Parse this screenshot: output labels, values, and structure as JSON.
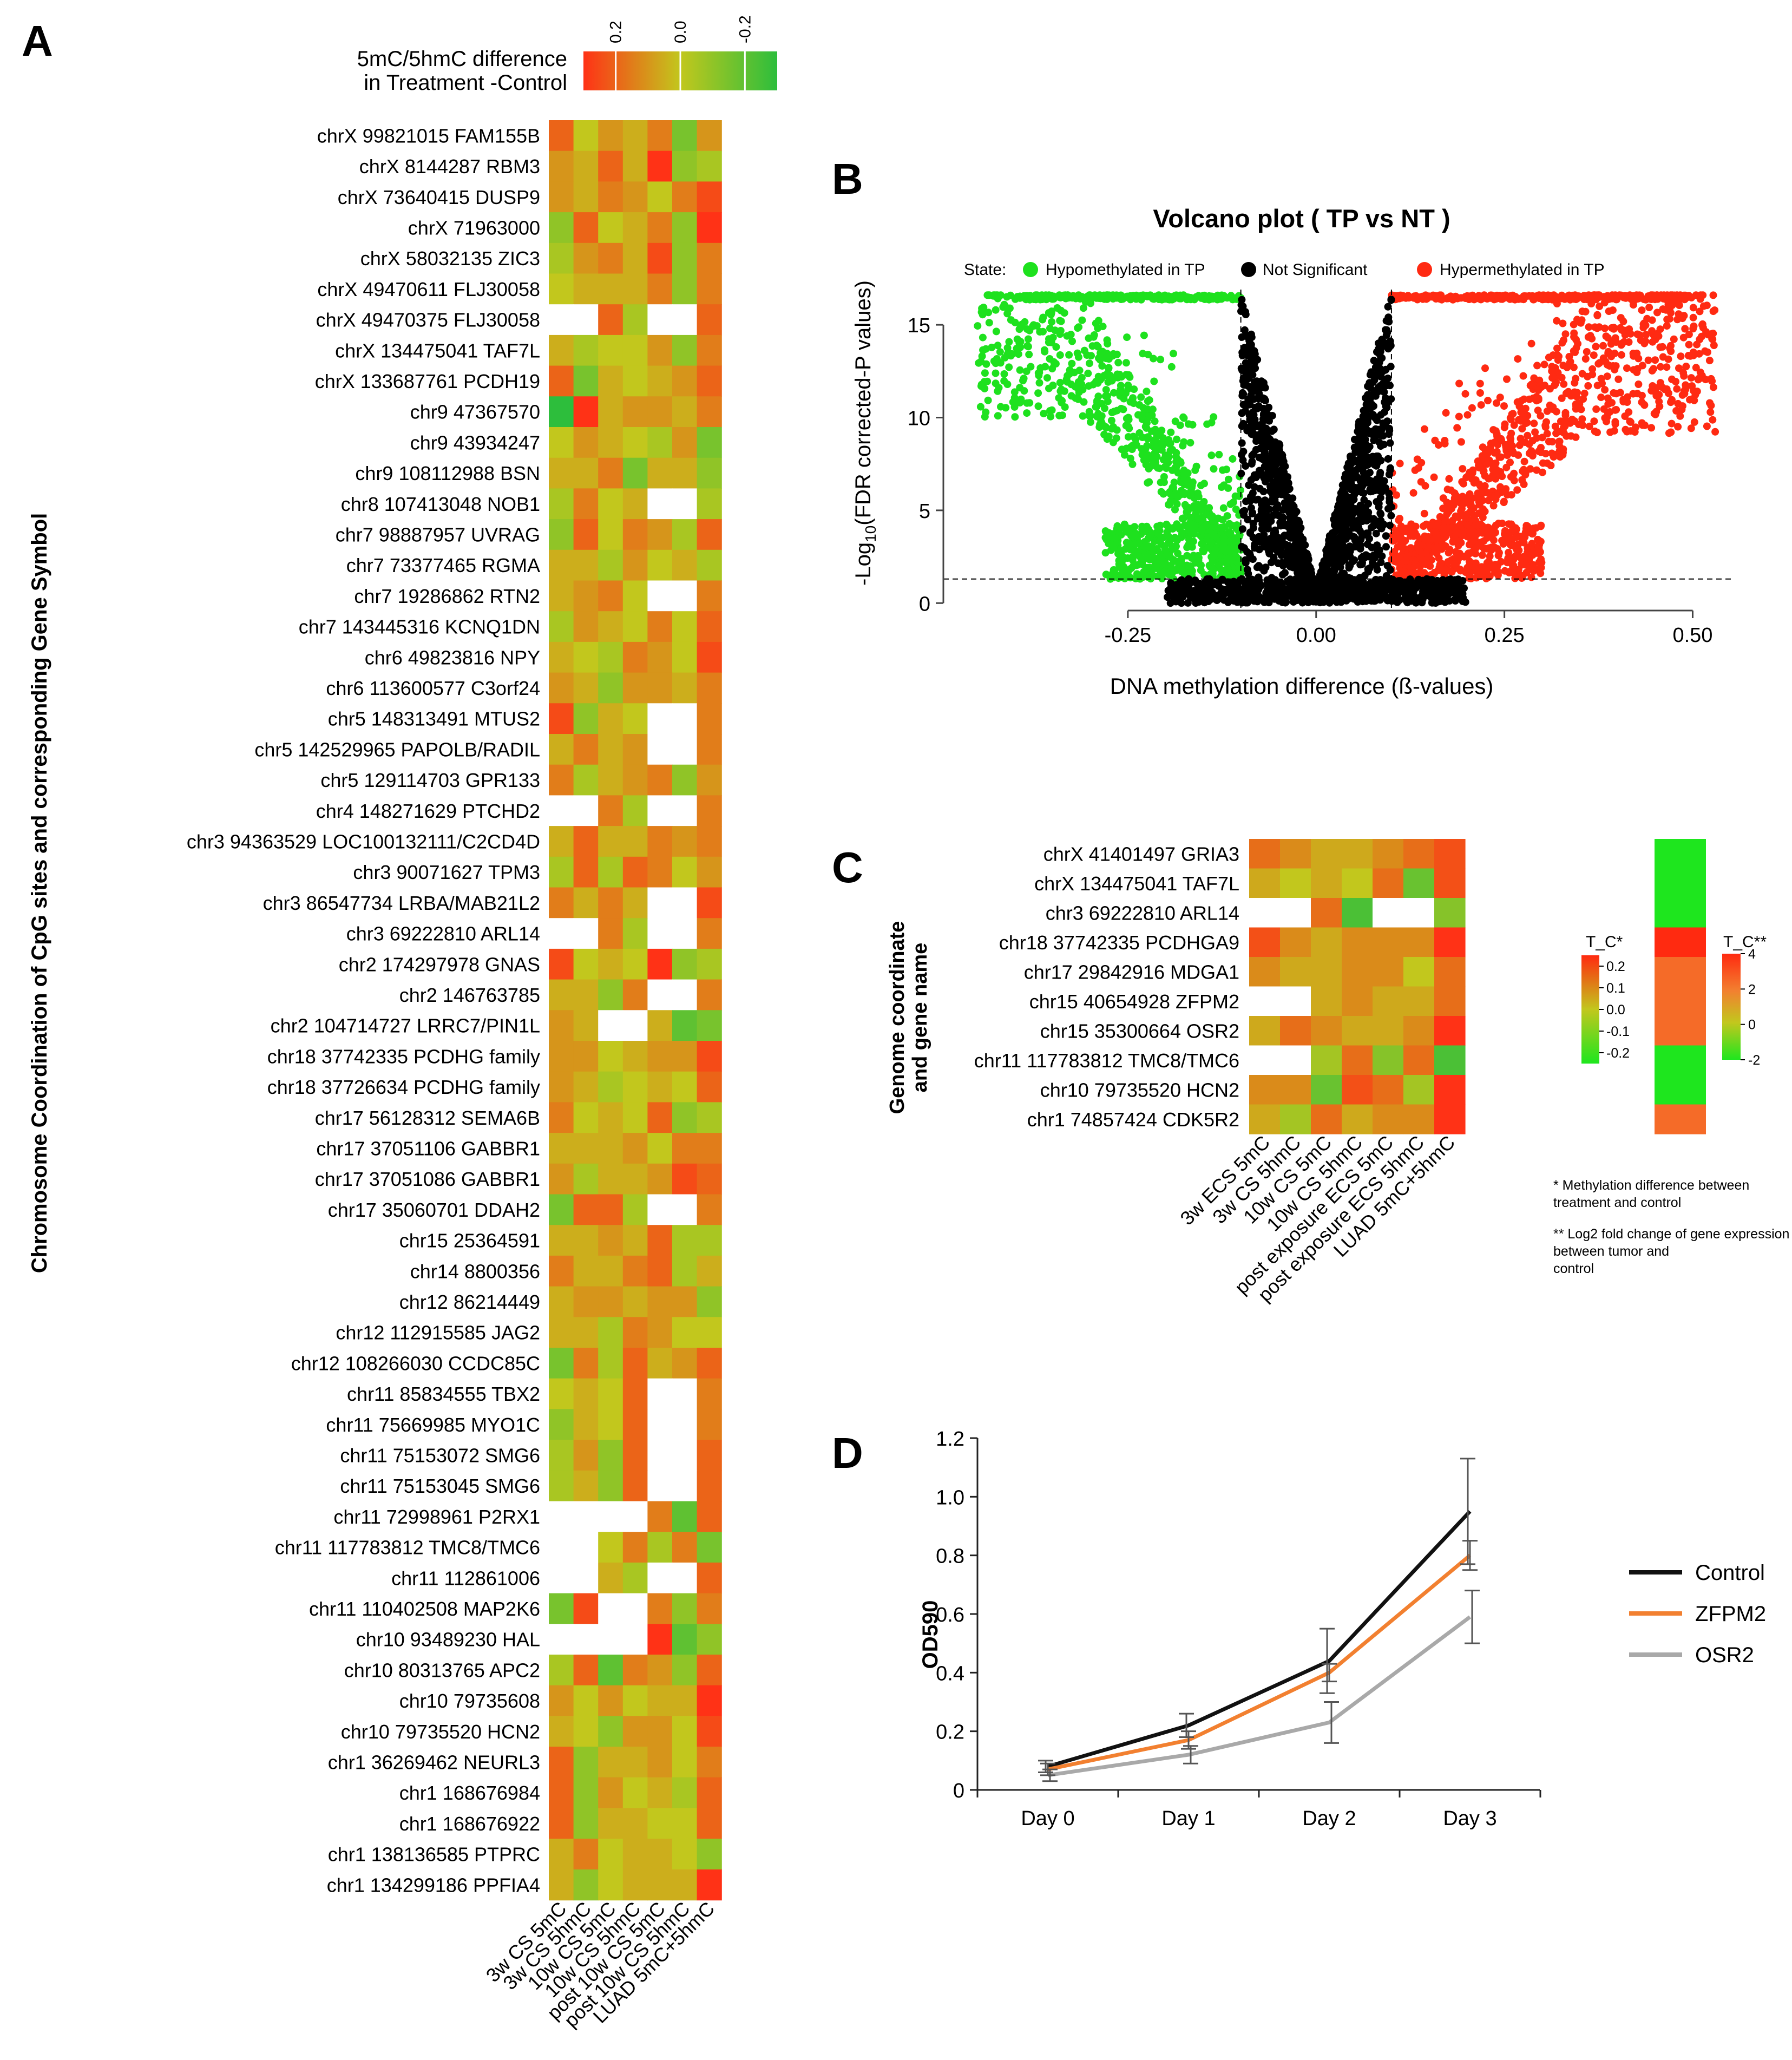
{
  "colors": {
    "heat_low": "#2dbe3c",
    "heat_mid": "#c2c71d",
    "heat_high": "#ff3216",
    "missing": "#ffffff",
    "volcano_hypo": "#1ee11e",
    "volcano_ns": "#000000",
    "volcano_hyper": "#ff2a12",
    "control_line": "#111111",
    "zfpm2_line": "#f28030",
    "osr2_line": "#a9a9a9"
  },
  "chart_data": [
    {
      "panel": "A",
      "type": "heatmap",
      "colorbar_title": [
        "5mC/5hmC difference",
        "in Treatment -Control"
      ],
      "colorbar_ticks": [
        "0.2",
        "0.0",
        "-0.2"
      ],
      "colorbar_tick_values": [
        0.2,
        0.0,
        -0.2
      ],
      "colorbar_range": [
        0.3,
        -0.3
      ],
      "ylabel": "Chromosome Coordination of CpG sites and corresponding Gene Symbol",
      "columns": [
        "3w CS 5mC",
        "3w CS 5hmC",
        "10w CS 5mC",
        "10w CS 5hmC",
        "post 10w CS 5mC",
        "post 10w CS 5hmC",
        "LUAD 5mC+5hmC"
      ],
      "rows": [
        "chrX 99821015 FAM155B",
        "chrX 8144287 RBM3",
        "chrX 73640415 DUSP9",
        "chrX 71963000",
        "chrX 58032135 ZIC3",
        "chrX 49470611 FLJ30058",
        "chrX 49470375 FLJ30058",
        "chrX 134475041 TAF7L",
        "chrX 133687761 PCDH19",
        "chr9 47367570",
        "chr9 43934247",
        "chr9 108112988 BSN",
        "chr8 107413048 NOB1",
        "chr7 98887957 UVRAG",
        "chr7 73377465 RGMA",
        "chr7 19286862 RTN2",
        "chr7 143445316 KCNQ1DN",
        "chr6 49823816 NPY",
        "chr6 113600577 C3orf24",
        "chr5 148313491 MTUS2",
        "chr5 142529965 PAPOLB/RADIL",
        "chr5 129114703 GPR133",
        "chr4 148271629 PTCHD2",
        "chr3 94363529 LOC100132111/C2CD4D",
        "chr3 90071627 TPM3",
        "chr3 86547734 LRBA/MAB21L2",
        "chr3 69222810 ARL14",
        "chr2 174297978 GNAS",
        "chr2 146763785",
        "chr2 104714727 LRRC7/PIN1L",
        "chr18 37742335 PCDHG family",
        "chr18 37726634 PCDHG family",
        "chr17 56128312 SEMA6B",
        "chr17 37051106 GABBR1",
        "chr17 37051086 GABBR1",
        "chr17 35060701 DDAH2",
        "chr15 25364591",
        "chr14 8800356",
        "chr12 86214449",
        "chr12 112915585 JAG2",
        "chr12 108266030 CCDC85C",
        "chr11 85834555 TBX2",
        "chr11 75669985 MYO1C",
        "chr11 75153072 SMG6",
        "chr11 75153045 SMG6",
        "chr11 72998961 P2RX1",
        "chr11 117783812 TMC8/TMC6",
        "chr11 112861006",
        "chr11 110402508 MAP2K6",
        "chr10 93489230 HAL",
        "chr10 80313765 APC2",
        "chr10 79735608",
        "chr10 79735520 HCN2",
        "chr1 36269462 NEURL3",
        "chr1 168676984",
        "chr1 168676922",
        "chr1 138136585 PTPRC",
        "chr1 134299186 PPFIA4"
      ],
      "values": [
        [
          0.2,
          0.0,
          0.1,
          0.05,
          0.15,
          -0.15,
          0.1
        ],
        [
          0.1,
          0.05,
          0.2,
          0.05,
          0.3,
          -0.1,
          -0.05
        ],
        [
          0.1,
          0.05,
          0.15,
          0.1,
          0.0,
          0.15,
          0.25
        ],
        [
          -0.1,
          0.2,
          0.0,
          0.05,
          0.15,
          -0.1,
          0.3
        ],
        [
          -0.05,
          0.1,
          0.15,
          0.05,
          0.25,
          -0.1,
          0.15
        ],
        [
          0.0,
          0.05,
          0.05,
          0.05,
          0.15,
          -0.1,
          0.15
        ],
        [
          null,
          null,
          0.2,
          -0.05,
          null,
          null,
          0.2
        ],
        [
          0.05,
          -0.05,
          0.0,
          0.0,
          0.1,
          -0.1,
          0.15
        ],
        [
          0.2,
          -0.15,
          0.05,
          0.0,
          0.05,
          0.1,
          0.2
        ],
        [
          -0.3,
          0.3,
          0.05,
          0.1,
          0.1,
          0.05,
          0.15
        ],
        [
          0.0,
          0.1,
          0.05,
          0.0,
          -0.05,
          0.1,
          -0.15
        ],
        [
          0.05,
          0.05,
          0.15,
          -0.15,
          0.05,
          0.05,
          -0.1
        ],
        [
          -0.05,
          0.15,
          0.0,
          0.05,
          null,
          null,
          -0.05
        ],
        [
          -0.1,
          0.2,
          0.0,
          0.15,
          0.1,
          -0.05,
          0.2
        ],
        [
          0.05,
          0.05,
          -0.05,
          0.1,
          0.0,
          0.05,
          -0.05
        ],
        [
          0.05,
          0.1,
          0.15,
          0.0,
          null,
          null,
          0.15
        ],
        [
          -0.05,
          0.1,
          0.05,
          0.0,
          0.15,
          0.0,
          0.2
        ],
        [
          0.05,
          0.0,
          -0.05,
          0.15,
          0.1,
          0.0,
          0.25
        ],
        [
          0.1,
          0.05,
          -0.1,
          0.1,
          0.1,
          0.05,
          0.15
        ],
        [
          0.25,
          -0.1,
          0.05,
          0.0,
          null,
          null,
          0.15
        ],
        [
          0.05,
          0.15,
          0.05,
          0.1,
          null,
          null,
          0.15
        ],
        [
          0.15,
          -0.05,
          0.05,
          0.1,
          0.15,
          -0.1,
          0.1
        ],
        [
          null,
          null,
          0.15,
          -0.05,
          null,
          null,
          0.15
        ],
        [
          0.05,
          0.2,
          0.05,
          0.05,
          0.15,
          0.1,
          0.15
        ],
        [
          -0.05,
          0.2,
          -0.05,
          0.2,
          0.15,
          0.0,
          0.1
        ],
        [
          0.15,
          0.05,
          0.15,
          0.05,
          null,
          null,
          0.25
        ],
        [
          null,
          null,
          0.15,
          -0.05,
          null,
          null,
          0.15
        ],
        [
          0.25,
          0.0,
          0.05,
          0.0,
          0.3,
          -0.1,
          -0.05
        ],
        [
          0.05,
          0.05,
          -0.1,
          0.15,
          null,
          null,
          0.15
        ],
        [
          0.1,
          0.05,
          null,
          null,
          0.05,
          -0.2,
          -0.15
        ],
        [
          0.1,
          0.1,
          0.0,
          0.05,
          0.1,
          0.1,
          0.25
        ],
        [
          0.1,
          0.05,
          -0.05,
          0.0,
          0.05,
          0.0,
          0.2
        ],
        [
          0.15,
          0.0,
          0.05,
          0.0,
          0.2,
          -0.1,
          -0.05
        ],
        [
          0.05,
          0.05,
          0.05,
          0.1,
          0.0,
          0.15,
          0.15
        ],
        [
          0.1,
          -0.05,
          0.05,
          0.05,
          0.1,
          0.25,
          0.2
        ],
        [
          -0.15,
          0.2,
          0.2,
          -0.05,
          null,
          null,
          0.15
        ],
        [
          0.05,
          0.05,
          0.1,
          0.05,
          0.2,
          -0.05,
          -0.05
        ],
        [
          0.15,
          0.05,
          0.05,
          0.15,
          0.2,
          -0.05,
          0.05
        ],
        [
          0.05,
          0.1,
          0.1,
          0.05,
          0.1,
          0.1,
          -0.1
        ],
        [
          0.05,
          0.05,
          -0.05,
          0.15,
          0.1,
          0.0,
          0.0
        ],
        [
          -0.15,
          0.15,
          -0.05,
          0.2,
          0.05,
          0.1,
          0.2
        ],
        [
          0.0,
          0.05,
          0.0,
          0.2,
          null,
          null,
          0.15
        ],
        [
          -0.1,
          0.05,
          0.0,
          0.2,
          null,
          null,
          0.15
        ],
        [
          -0.05,
          0.1,
          -0.1,
          0.2,
          null,
          null,
          0.2
        ],
        [
          -0.05,
          0.05,
          -0.1,
          0.2,
          null,
          null,
          0.2
        ],
        [
          null,
          null,
          null,
          null,
          0.15,
          -0.2,
          0.2
        ],
        [
          null,
          null,
          0.0,
          0.15,
          -0.05,
          0.15,
          -0.15
        ],
        [
          null,
          null,
          0.05,
          -0.05,
          null,
          null,
          0.2
        ],
        [
          -0.15,
          0.25,
          null,
          null,
          0.15,
          -0.1,
          0.15
        ],
        [
          null,
          null,
          null,
          null,
          0.3,
          -0.2,
          -0.1
        ],
        [
          -0.05,
          0.2,
          -0.2,
          0.15,
          0.1,
          -0.1,
          0.2
        ],
        [
          0.1,
          0.0,
          0.1,
          0.0,
          0.05,
          0.05,
          0.3
        ],
        [
          0.05,
          0.0,
          -0.1,
          0.1,
          0.1,
          0.0,
          0.25
        ],
        [
          0.2,
          -0.1,
          0.05,
          0.05,
          0.1,
          0.0,
          0.15
        ],
        [
          0.2,
          -0.1,
          0.1,
          0.0,
          0.05,
          -0.05,
          0.2
        ],
        [
          0.2,
          -0.1,
          0.05,
          0.05,
          0.0,
          0.0,
          0.2
        ],
        [
          0.05,
          0.15,
          0.0,
          0.05,
          0.05,
          0.0,
          -0.1
        ],
        [
          0.05,
          -0.1,
          0.0,
          0.05,
          0.05,
          0.05,
          0.35
        ]
      ]
    },
    {
      "panel": "B",
      "type": "scatter",
      "title": "Volcano plot ( TP vs NT )",
      "xlabel": "DNA methylation difference (ß-values)",
      "ylabel": "-Log10(FDR corrected-P values)",
      "ylabel_parts": [
        "-Log",
        "10",
        "(FDR corrected-P values)"
      ],
      "legend_title": "State:",
      "legend": [
        "Hypomethylated in TP",
        "Not Significant",
        "Hypermethylated in TP"
      ],
      "x_ticks": [
        "-0.25",
        "0.00",
        "0.25",
        "0.50"
      ],
      "x_tick_values": [
        -0.25,
        0.0,
        0.25,
        0.5
      ],
      "y_ticks": [
        "0",
        "5",
        "10",
        "15"
      ],
      "y_tick_values": [
        0,
        5,
        10,
        15
      ],
      "xlim": [
        -0.495,
        0.555
      ],
      "ylim": [
        -0.4,
        16.9
      ],
      "y_cap": 16.6,
      "x_thresholds": [
        -0.1,
        0.1
      ],
      "y_threshold": 1.3,
      "x_extent": [
        -0.45,
        0.53
      ]
    },
    {
      "panel": "C",
      "type": "heatmap",
      "ylabel": [
        "Genome coordinate",
        "and gene name"
      ],
      "rows": [
        "chrX 41401497 GRIA3",
        "chrX 134475041 TAF7L",
        "chr3 69222810 ARL14",
        "chr18 37742335 PCDHGA9",
        "chr17 29842916 MDGA1",
        "chr15 40654928 ZFPM2",
        "chr15 35300664 OSR2",
        "chr11 117783812 TMC8/TMC6",
        "chr10 79735520 HCN2",
        "chr1 74857424 CDK5R2"
      ],
      "columns": [
        "3w ECS 5mC",
        "3w CS 5hmC",
        "10w CS 5mC",
        "10w CS 5hmC",
        "post exposure ECS 5mC",
        "post exposure ECS 5hmC",
        "LUAD 5mC+5hmC"
      ],
      "values": [
        [
          0.15,
          0.1,
          0.05,
          0.05,
          0.1,
          0.15,
          0.2
        ],
        [
          0.05,
          0.0,
          0.05,
          0.0,
          0.15,
          -0.15,
          0.2
        ],
        [
          null,
          null,
          0.15,
          -0.2,
          null,
          null,
          -0.1
        ],
        [
          0.2,
          0.1,
          0.05,
          0.1,
          0.1,
          0.1,
          0.3
        ],
        [
          0.1,
          0.05,
          0.05,
          0.1,
          0.1,
          0.0,
          0.15
        ],
        [
          null,
          null,
          0.05,
          0.1,
          0.05,
          0.05,
          0.15
        ],
        [
          0.05,
          0.15,
          0.1,
          0.05,
          0.05,
          0.1,
          0.3
        ],
        [
          null,
          null,
          -0.05,
          0.15,
          -0.1,
          0.15,
          -0.2
        ],
        [
          0.1,
          0.1,
          -0.15,
          0.2,
          0.15,
          -0.05,
          0.25
        ],
        [
          0.05,
          -0.05,
          0.15,
          0.05,
          0.1,
          0.1,
          0.25
        ]
      ],
      "legend1_title": "T_C*",
      "legend1_ticks": [
        "0.2",
        "0.1",
        "0.0",
        "-0.1",
        "-0.2"
      ],
      "legend1_tick_values": [
        0.2,
        0.1,
        0.0,
        -0.1,
        -0.2
      ],
      "legend2_title": "T_C**",
      "legend2_ticks": [
        "4",
        "2",
        "0",
        "-2"
      ],
      "legend2_tick_values": [
        4,
        2,
        0,
        -2
      ],
      "expression_log2fc": [
        -2.2,
        -2.0,
        -2.0,
        4.0,
        2.5,
        2.5,
        2.5,
        -2.0,
        -2.0,
        2.5
      ],
      "notes": [
        "* Methylation difference between treatment and control",
        "** Log2 fold change of gene expression between tumor and control"
      ]
    },
    {
      "panel": "D",
      "type": "line",
      "ylabel": "OD590",
      "categories": [
        "Day 0",
        "Day 1",
        "Day 2",
        "Day 3"
      ],
      "y_ticks": [
        "0",
        "0.2",
        "0.4",
        "0.6",
        "0.8",
        "1.0",
        "1.2"
      ],
      "ylim": [
        0,
        1.2
      ],
      "series": [
        {
          "name": "Control",
          "values": [
            0.08,
            0.22,
            0.44,
            0.95
          ],
          "errors": [
            0.02,
            0.04,
            0.11,
            0.18
          ]
        },
        {
          "name": "ZFPM2",
          "values": [
            0.07,
            0.17,
            0.4,
            0.8
          ],
          "errors": [
            0.02,
            0.03,
            0.03,
            0.05
          ]
        },
        {
          "name": "OSR2",
          "values": [
            0.05,
            0.12,
            0.23,
            0.59
          ],
          "errors": [
            0.02,
            0.03,
            0.07,
            0.09
          ]
        }
      ]
    }
  ],
  "panel_labels": {
    "a": "A",
    "b": "B",
    "c": "C",
    "d": "D"
  }
}
